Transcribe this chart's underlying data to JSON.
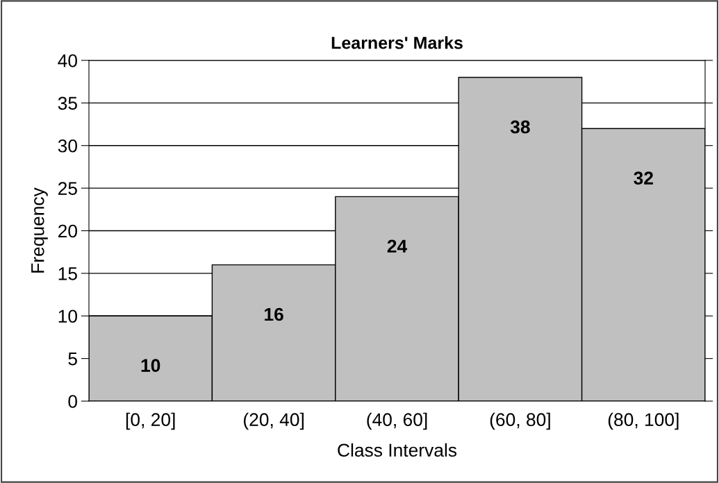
{
  "chart_data": {
    "type": "bar",
    "title": "Learners' Marks",
    "xlabel": "Class Intervals",
    "ylabel": "Frequency",
    "categories": [
      "[0, 20]",
      "(20, 40]",
      "(40, 60]",
      "(60, 80]",
      "(80, 100]"
    ],
    "values": [
      10,
      16,
      24,
      38,
      32
    ],
    "color": "#c0c0c0",
    "data_labels": true,
    "ylim": [
      0,
      40
    ],
    "yticks": [
      0,
      5,
      10,
      15,
      20,
      25,
      30,
      35,
      40
    ],
    "grid": "y",
    "legend": false
  }
}
